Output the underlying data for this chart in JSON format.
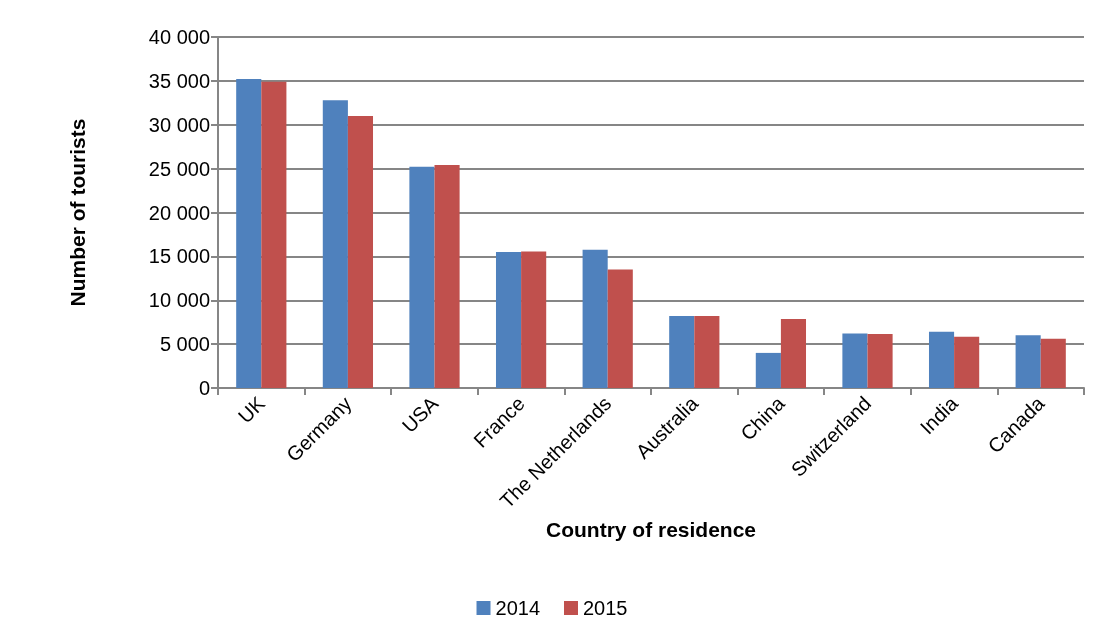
{
  "chart_data": {
    "type": "bar",
    "xlabel": "Country of residence",
    "ylabel": "Number of tourists",
    "categories": [
      "UK",
      "Germany",
      "USA",
      "France",
      "The Netherlands",
      "Australia",
      "China",
      "Switzerland",
      "India",
      "Canada"
    ],
    "series": [
      {
        "name": "2014",
        "color": "#4f81bd",
        "values": [
          35200,
          32800,
          25200,
          15500,
          15750,
          8200,
          4000,
          6200,
          6400,
          6000
        ]
      },
      {
        "name": "2015",
        "color": "#c0504d",
        "values": [
          34900,
          31000,
          25400,
          15550,
          13500,
          8200,
          7850,
          6150,
          5850,
          5600
        ]
      }
    ],
    "ylim": [
      0,
      40000
    ],
    "yticks": [
      {
        "value": 0,
        "label": "0"
      },
      {
        "value": 5000,
        "label": "5 000"
      },
      {
        "value": 10000,
        "label": "10 000"
      },
      {
        "value": 15000,
        "label": "15 000"
      },
      {
        "value": 20000,
        "label": "20 000"
      },
      {
        "value": 25000,
        "label": "25 000"
      },
      {
        "value": 30000,
        "label": "30 000"
      },
      {
        "value": 35000,
        "label": "35 000"
      },
      {
        "value": 40000,
        "label": "40 000"
      }
    ],
    "grid": "y",
    "legend": "bottom"
  }
}
